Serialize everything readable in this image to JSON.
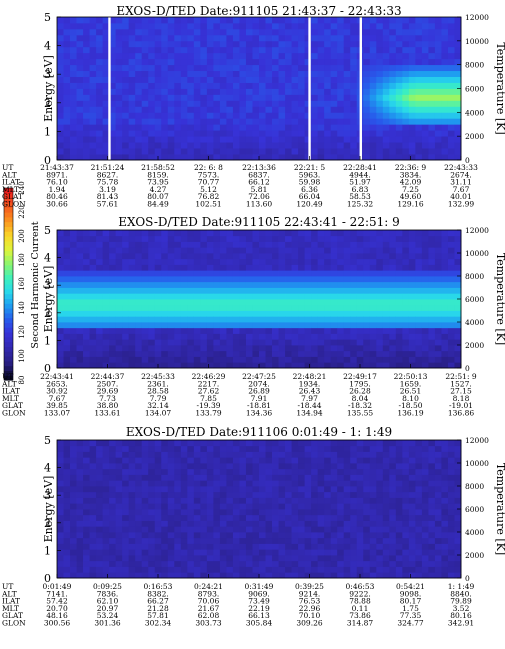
{
  "colorbar": {
    "label": "Second Harmonic Current",
    "ticks": [
      "80",
      "100",
      "120",
      "140",
      "160",
      "180",
      "200",
      "220",
      "240"
    ]
  },
  "chart_data": [
    {
      "type": "heatmap",
      "title": "EXOS-D/TED   Date:911105  21:43:37 - 22:43:33",
      "ylabel": "Energy [eV]",
      "y2label": "Temperature [K]",
      "ylim": [
        0,
        5
      ],
      "y2lim": [
        0,
        12000
      ],
      "yticks": [
        "0",
        "1",
        "2",
        "3",
        "4",
        "5"
      ],
      "y2ticks": [
        "0",
        "2000",
        "4000",
        "6000",
        "8000",
        "10000",
        "12000"
      ],
      "row_labels": [
        "UT",
        "ALT",
        "ILAT",
        "MLT",
        "GLAT",
        "GLON"
      ],
      "columns": [
        [
          "21:43:37",
          "8971.",
          "76.10",
          "1.94",
          "80.46",
          "30.66"
        ],
        [
          "21:51:24",
          "8627.",
          "75.78",
          "3.19",
          "81.43",
          "57.61"
        ],
        [
          "21:58:52",
          "8159.",
          "73.95",
          "4.27",
          "80.07",
          "84.49"
        ],
        [
          "22: 6: 8",
          "7573.",
          "70.77",
          "5.12",
          "76.82",
          "102.51"
        ],
        [
          "22:13:36",
          "6837.",
          "66.12",
          "5.81",
          "72.06",
          "113.60"
        ],
        [
          "22:21: 5",
          "5963.",
          "59.98",
          "6.36",
          "66.04",
          "120.49"
        ],
        [
          "22:28:41",
          "4944.",
          "51.97",
          "6.83",
          "58.53",
          "125.32"
        ],
        [
          "22:36: 9",
          "3834.",
          "42.09",
          "7.25",
          "49.60",
          "129.16"
        ],
        [
          "22:43:33",
          "2674.",
          "31.11",
          "7.67",
          "40.01",
          "132.99"
        ]
      ],
      "data_gaps_ut": [
        "21:51:24",
        "22:21: 5",
        "22:28:41"
      ],
      "features": [
        {
          "ut_start": "22:28:41",
          "ut_end": "22:43:33",
          "energy_range": [
            1.2,
            3.3
          ],
          "peak_energy": 2.2,
          "peak_level": 180
        }
      ],
      "background_level": 120
    },
    {
      "type": "heatmap",
      "title": "EXOS-D/TED   Date:911105  22:43:41 - 22:51: 9",
      "ylabel": "Energy [eV]",
      "y2label": "Temperature [K]",
      "ylim": [
        0,
        5
      ],
      "y2lim": [
        0,
        12000
      ],
      "yticks": [
        "0",
        "1",
        "2",
        "3",
        "4",
        "5"
      ],
      "y2ticks": [
        "0",
        "2000",
        "4000",
        "6000",
        "8000",
        "10000",
        "12000"
      ],
      "row_labels": [
        "UT",
        "ALT",
        "ILAT",
        "MLT",
        "GLAT",
        "GLON"
      ],
      "columns": [
        [
          "22:43:41",
          "2653.",
          "30.92",
          "7.67",
          "39.85",
          "133.07"
        ],
        [
          "22:44:37",
          "2507.",
          "29.69",
          "7.73",
          "38.80",
          "133.61"
        ],
        [
          "22:45:33",
          "2361.",
          "28.58",
          "7.79",
          "32.14",
          "134.07"
        ],
        [
          "22:46:29",
          "2217.",
          "27.62",
          "7.85",
          "-19.39",
          "133.79"
        ],
        [
          "22:47:25",
          "2074.",
          "26.89",
          "7.91",
          "-18.81",
          "134.36"
        ],
        [
          "22:48:21",
          "1934.",
          "26.43",
          "7.97",
          "-18.44",
          "134.94"
        ],
        [
          "22:49:17",
          "1795.",
          "26.28",
          "8.04",
          "-18.32",
          "135.55"
        ],
        [
          "22:50:13",
          "1659.",
          "26.51",
          "8.10",
          "-18.50",
          "136.19"
        ],
        [
          "22:51: 9",
          "1527.",
          "27.15",
          "8.18",
          "-19.01",
          "136.86"
        ]
      ],
      "data_gaps_ut": [],
      "features": [
        {
          "ut_start": "22:43:41",
          "ut_end": "22:51: 9",
          "energy_range": [
            1.4,
            3.6
          ],
          "peak_energy": 2.3,
          "peak_level": 165
        }
      ],
      "background_level": 110
    },
    {
      "type": "heatmap",
      "title": "EXOS-D/TED   Date:911106   0:01:49 -  1: 1:49",
      "ylabel": "Energy [eV]",
      "y2label": "Temperature [K]",
      "ylim": [
        0,
        5
      ],
      "y2lim": [
        0,
        12000
      ],
      "yticks": [
        "0",
        "1",
        "2",
        "3",
        "4",
        "5"
      ],
      "y2ticks": [
        "0",
        "2000",
        "4000",
        "6000",
        "8000",
        "10000",
        "12000"
      ],
      "row_labels": [
        "UT",
        "ALT",
        "ILAT",
        "MLT",
        "GLAT",
        "GLON"
      ],
      "columns": [
        [
          "0:01:49",
          "7141.",
          "57.42",
          "20.70",
          "48.16",
          "300.56"
        ],
        [
          "0:09:25",
          "7836.",
          "62.10",
          "20.97",
          "53.24",
          "301.36"
        ],
        [
          "0:16:53",
          "8382.",
          "66.27",
          "21.28",
          "57.81",
          "302.34"
        ],
        [
          "0:24:21",
          "8793.",
          "70.06",
          "21.67",
          "62.08",
          "303.73"
        ],
        [
          "0:31:49",
          "9069.",
          "73.49",
          "22.19",
          "66.13",
          "305.84"
        ],
        [
          "0:39:25",
          "9214.",
          "76.53",
          "22.96",
          "70.10",
          "309.26"
        ],
        [
          "0:46:53",
          "9222.",
          "78.88",
          "0.11",
          "73.86",
          "314.87"
        ],
        [
          "0:54:21",
          "9098.",
          "80.17",
          "1.75",
          "77.35",
          "324.77"
        ],
        [
          "1: 1:49",
          "8840.",
          "79.89",
          "3.52",
          "80.16",
          "342.91"
        ]
      ],
      "data_gaps_ut": [],
      "features": [],
      "background_level": 105
    }
  ]
}
